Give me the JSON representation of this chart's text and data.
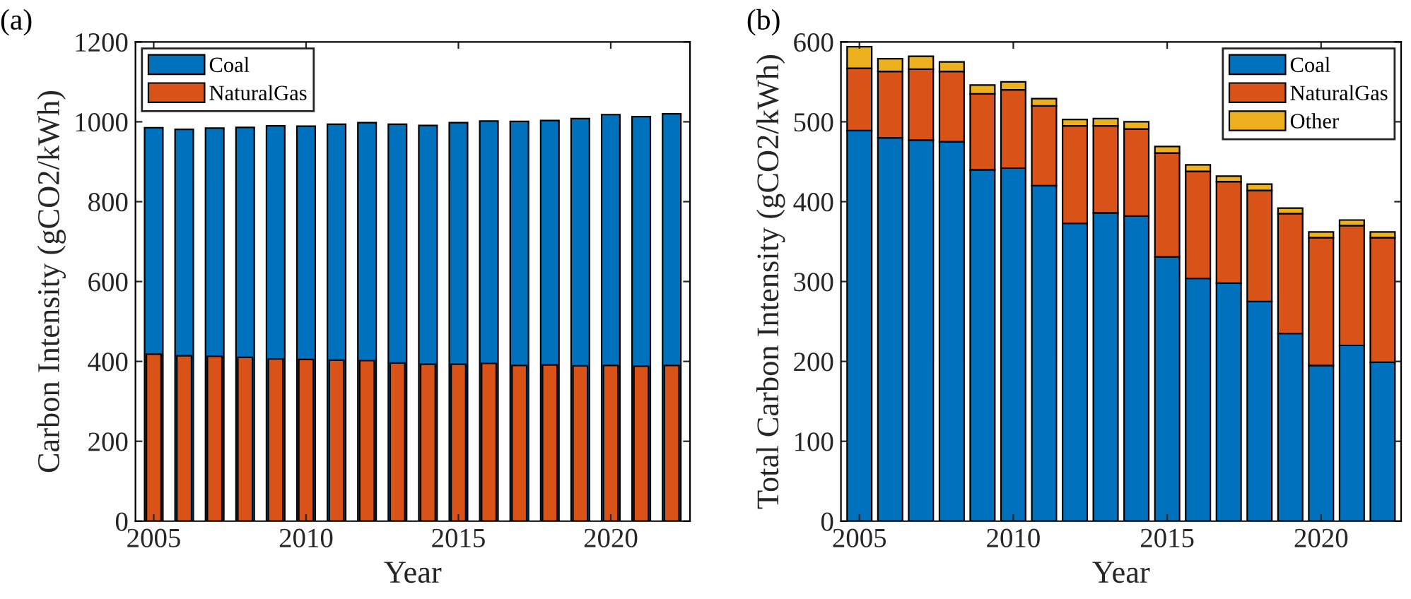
{
  "chart_data": [
    {
      "type": "bar",
      "annotations": [
        "(a)"
      ],
      "xlabel": "Year",
      "ylabel": "Carbon Intensity (gCO2/kWh)",
      "x": [
        2005,
        2006,
        2007,
        2008,
        2009,
        2010,
        2011,
        2012,
        2013,
        2014,
        2015,
        2016,
        2017,
        2018,
        2019,
        2020,
        2021,
        2022
      ],
      "series": [
        {
          "name": "Coal",
          "color": "#0072bd",
          "values": [
            985,
            981,
            984,
            986,
            990,
            989,
            994,
            998,
            994,
            991,
            998,
            1002,
            1001,
            1003,
            1008,
            1018,
            1013,
            1020
          ]
        },
        {
          "name": "NaturalGas",
          "color": "#d95319",
          "values": [
            418,
            414,
            413,
            410,
            406,
            405,
            403,
            402,
            396,
            393,
            393,
            395,
            390,
            391,
            389,
            390,
            388,
            390
          ]
        }
      ],
      "xlim": [
        2004.4,
        2022.6
      ],
      "xticks": [
        2005,
        2010,
        2015,
        2020
      ],
      "ylim": [
        0,
        1200
      ],
      "yticks": [
        0,
        200,
        400,
        600,
        800,
        1000,
        1200
      ],
      "legend": "top left",
      "grid": false
    },
    {
      "type": "bar",
      "stacked": true,
      "annotations": [
        "(b)"
      ],
      "xlabel": "Year",
      "ylabel": "Total Carbon Intensity (gCO2/kWh)",
      "x": [
        2005,
        2006,
        2007,
        2008,
        2009,
        2010,
        2011,
        2012,
        2013,
        2014,
        2015,
        2016,
        2017,
        2018,
        2019,
        2020,
        2021,
        2022
      ],
      "series": [
        {
          "name": "Coal",
          "color": "#0072bd",
          "values": [
            489,
            480,
            477,
            475,
            440,
            442,
            420,
            373,
            386,
            382,
            331,
            304,
            298,
            275,
            235,
            195,
            220,
            199
          ]
        },
        {
          "name": "NaturalGas",
          "color": "#d95319",
          "values": [
            78,
            83,
            89,
            88,
            95,
            98,
            100,
            122,
            109,
            109,
            130,
            134,
            127,
            139,
            150,
            160,
            150,
            156
          ]
        },
        {
          "name": "Other",
          "color": "#edb120",
          "values": [
            27,
            16,
            16,
            12,
            11,
            10,
            9,
            8,
            9,
            9,
            8,
            8,
            7,
            8,
            7,
            7,
            7,
            7
          ]
        }
      ],
      "xlim": [
        2004.4,
        2022.6
      ],
      "xticks": [
        2005,
        2010,
        2015,
        2020
      ],
      "ylim": [
        0,
        600
      ],
      "yticks": [
        0,
        100,
        200,
        300,
        400,
        500,
        600
      ],
      "legend": "top right",
      "grid": false
    }
  ]
}
